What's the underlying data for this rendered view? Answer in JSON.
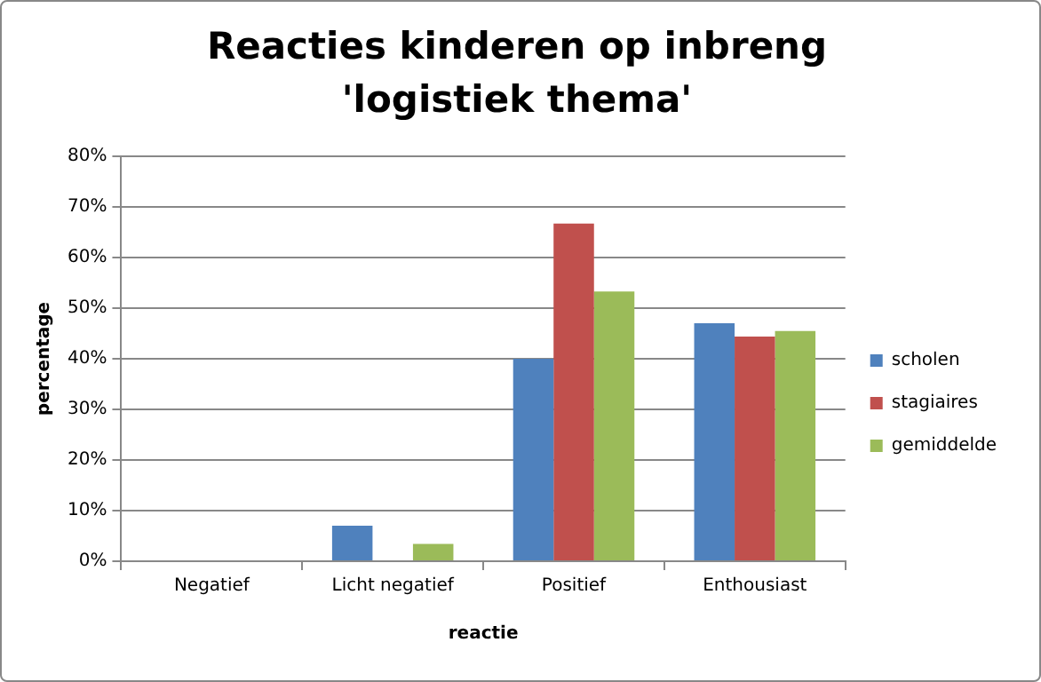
{
  "chart_data": {
    "type": "bar",
    "title": "Reacties kinderen op inbreng 'logistiek thema'",
    "xlabel": "reactie",
    "ylabel": "percentage",
    "categories": [
      "Negatief",
      "Licht negatief",
      "Positief",
      "Enthousiast"
    ],
    "series": [
      {
        "name": "scholen",
        "color": "#4f81bd",
        "values": [
          0,
          7,
          40,
          47
        ]
      },
      {
        "name": "stagiaires",
        "color": "#c0504d",
        "values": [
          0,
          0,
          66.7,
          44.4
        ]
      },
      {
        "name": "gemiddelde",
        "color": "#9bbb59",
        "values": [
          0,
          3.4,
          53.3,
          45.5
        ]
      }
    ],
    "ylim": [
      0,
      80
    ],
    "yticks": [
      {
        "value": 0,
        "label": "0%"
      },
      {
        "value": 10,
        "label": "10%"
      },
      {
        "value": 20,
        "label": "20%"
      },
      {
        "value": 30,
        "label": "30%"
      },
      {
        "value": 40,
        "label": "40%"
      },
      {
        "value": 50,
        "label": "50%"
      },
      {
        "value": 60,
        "label": "60%"
      },
      {
        "value": 70,
        "label": "70%"
      },
      {
        "value": 80,
        "label": "80%"
      }
    ],
    "grid": "y",
    "legend": "right"
  }
}
